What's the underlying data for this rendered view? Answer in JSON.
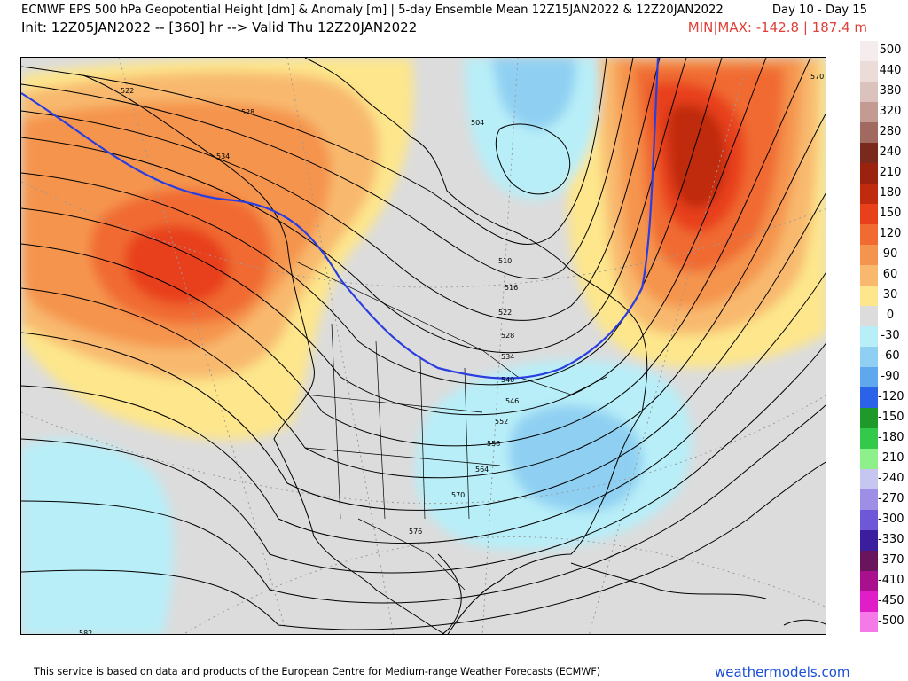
{
  "header": {
    "title": "ECMWF EPS 500 hPa Geopotential Height [dm] & Anomaly [m] | 5-day Ensemble Mean 12Z15JAN2022 & 12Z20JAN2022",
    "day_range": "Day 10 - Day 15",
    "valid": "Init: 12Z05JAN2022 -- [360] hr --> Valid Thu 12Z20JAN2022",
    "minmax": "MIN|MAX: -142.8 | 187.4 m"
  },
  "colorbar": {
    "levels": [
      {
        "label": "500",
        "color": "#f5eded"
      },
      {
        "label": "440",
        "color": "#ecdcd8"
      },
      {
        "label": "380",
        "color": "#dcc2bc"
      },
      {
        "label": "320",
        "color": "#c39b93"
      },
      {
        "label": "280",
        "color": "#a06a60"
      },
      {
        "label": "240",
        "color": "#7a2a1c"
      },
      {
        "label": "210",
        "color": "#9a220e"
      },
      {
        "label": "180",
        "color": "#c02a0e"
      },
      {
        "label": "150",
        "color": "#e8401a"
      },
      {
        "label": "120",
        "color": "#f06a32"
      },
      {
        "label": "90",
        "color": "#f5944e"
      },
      {
        "label": "60",
        "color": "#f8b96e"
      },
      {
        "label": "30",
        "color": "#fde68c"
      },
      {
        "label": "0",
        "color": "#dcdcdc"
      },
      {
        "label": "-30",
        "color": "#b8eef8"
      },
      {
        "label": "-60",
        "color": "#8fd0f2"
      },
      {
        "label": "-90",
        "color": "#5fa8ee"
      },
      {
        "label": "-120",
        "color": "#2c62e8"
      },
      {
        "label": "-150",
        "color": "#1e9a2a"
      },
      {
        "label": "-180",
        "color": "#33c94a"
      },
      {
        "label": "-210",
        "color": "#8ef08a"
      },
      {
        "label": "-240",
        "color": "#c6c6f0"
      },
      {
        "label": "-270",
        "color": "#9e8ee6"
      },
      {
        "label": "-300",
        "color": "#6e58d8"
      },
      {
        "label": "-330",
        "color": "#3a1e9e"
      },
      {
        "label": "-370",
        "color": "#6a145e"
      },
      {
        "label": "-410",
        "color": "#a8108e"
      },
      {
        "label": "-450",
        "color": "#e01ec8"
      },
      {
        "label": "-500",
        "color": "#f57ae8"
      }
    ]
  },
  "map": {
    "contour_labels": [
      "522",
      "528",
      "534",
      "504",
      "510",
      "516",
      "522",
      "528",
      "534",
      "540",
      "546",
      "552",
      "558",
      "564",
      "570",
      "576",
      "582",
      "570"
    ],
    "colors": {
      "land_outline": "#000000",
      "contour": "#000000",
      "anomaly_zero_line": "#2a3ee0",
      "graticule": "#9a9a9a"
    }
  },
  "footer": {
    "disclaimer": "This service is based on data and products of the European Centre for Medium-range Weather Forecasts (ECMWF)",
    "brand": "weathermodels.com"
  }
}
